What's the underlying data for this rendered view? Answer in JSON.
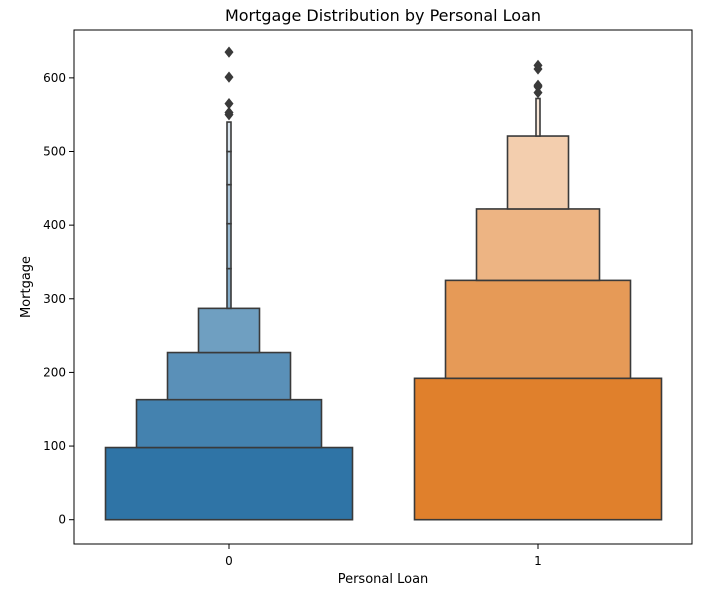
{
  "chart_data": {
    "type": "boxenplot",
    "title": "Mortgage Distribution by Personal Loan",
    "xlabel": "Personal Loan",
    "ylabel": "Mortgage",
    "categories": [
      "0",
      "1"
    ],
    "yticks": [
      "0",
      "100",
      "200",
      "300",
      "400",
      "500",
      "600"
    ],
    "ylim": [
      -33,
      665
    ],
    "grid": false,
    "legend": "none",
    "series": [
      {
        "category": "0",
        "color": "#2f74a6",
        "median": 0,
        "letter_values": [
          {
            "lower": 0,
            "upper": 98
          },
          {
            "lower": 98,
            "upper": 163
          },
          {
            "lower": 163,
            "upper": 227
          },
          {
            "lower": 227,
            "upper": 287
          },
          {
            "lower": 287,
            "upper": 341
          },
          {
            "lower": 341,
            "upper": 402
          },
          {
            "lower": 402,
            "upper": 455
          },
          {
            "lower": 455,
            "upper": 500
          },
          {
            "lower": 500,
            "upper": 540
          }
        ],
        "outliers": [
          550,
          553,
          565,
          601,
          635
        ]
      },
      {
        "category": "1",
        "color": "#e0802c",
        "median": 0,
        "letter_values": [
          {
            "lower": 0,
            "upper": 192
          },
          {
            "lower": 192,
            "upper": 325
          },
          {
            "lower": 325,
            "upper": 422
          },
          {
            "lower": 422,
            "upper": 521
          },
          {
            "lower": 521,
            "upper": 572
          }
        ],
        "outliers": [
          580,
          588,
          590,
          612,
          617
        ]
      }
    ]
  }
}
